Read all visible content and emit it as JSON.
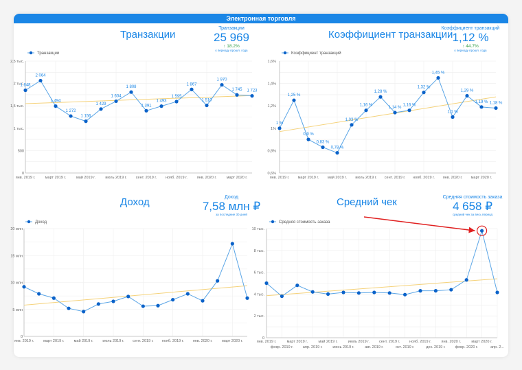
{
  "header": {
    "title": "Электронная торговля"
  },
  "panels": [
    {
      "title": "Транзакции",
      "kpi": {
        "label": "Транзакции",
        "value": "25 969",
        "change": "↑ 18.2%",
        "note": "к периоду прошл. года"
      }
    },
    {
      "title": "Коэффициент транзакции",
      "kpi": {
        "label": "Коэффициент транзакций",
        "value": "1,12 %",
        "change": "↑ 44.7%",
        "note": "к периоду прошл. года"
      }
    },
    {
      "title": "Доход",
      "kpi": {
        "label": "Доход",
        "value": "7,58 млн ₽",
        "note": "за последние 30 дней"
      }
    },
    {
      "title": "Средний чек",
      "kpi": {
        "label": "Средняя стоимость заказа",
        "value": "4 658 ₽",
        "note": "средний чек за весь период"
      }
    }
  ],
  "colors": {
    "accent": "#1a86e6",
    "line": "#5aa5e6",
    "point": "#0a62c9",
    "trend": "#f5d27a",
    "positive": "#2e9e44",
    "annotation": "#e02020"
  },
  "chart_data": [
    {
      "type": "line",
      "title": "Транзакции",
      "legend": "Транзакции",
      "legend_position": "top-left",
      "categories": [
        "янв. 2019 г.",
        "февр. 2019 г.",
        "март 2019 г.",
        "апр. 2019 г.",
        "май 2019 г.",
        "июнь 2019 г.",
        "июль 2019 г.",
        "авг. 2019 г.",
        "сент. 2019 г.",
        "окт. 2019 г.",
        "нояб. 2019 г.",
        "дек. 2019 г.",
        "янв. 2020 г.",
        "февр. 2020 г.",
        "март 2020 г.",
        "апр. 2020 г."
      ],
      "x_tick_labels": [
        "янв. 2019 г.",
        "март 2019 г.",
        "май 2019 г.",
        "июль 2019 г.",
        "сент. 2019 г.",
        "нояб. 2019 г.",
        "янв. 2020 г.",
        "март 2020 г."
      ],
      "values": [
        1848,
        2064,
        1494,
        1272,
        1156,
        1429,
        1604,
        1808,
        1391,
        1493,
        1595,
        1867,
        1510,
        1970,
        1745,
        1723
      ],
      "data_labels": [
        "1 848",
        "2 064",
        "1 494",
        "1 272",
        "1 156",
        "1 429",
        "1 604",
        "1 808",
        "1 391",
        "1 493",
        "1 595",
        "1 867",
        "1 510",
        "1 970",
        "1 745",
        "1 723"
      ],
      "trend": [
        1550,
        1730
      ],
      "ylim": [
        0,
        2500
      ],
      "y_ticks": [
        0,
        500,
        1000,
        1500,
        2000,
        2500
      ],
      "y_tick_labels": [
        "0",
        "500",
        "1 тыс.",
        "1,5 тыс.",
        "2 тыс.",
        "2,5 тыс."
      ],
      "grid": true
    },
    {
      "type": "line",
      "title": "Коэффициент транзакции",
      "legend": "Коэффициент транзакций",
      "legend_position": "top-left",
      "categories": [
        "янв. 2019 г.",
        "февр. 2019 г.",
        "март 2019 г.",
        "апр. 2019 г.",
        "май 2019 г.",
        "июнь 2019 г.",
        "июль 2019 г.",
        "авг. 2019 г.",
        "сент. 2019 г.",
        "окт. 2019 г.",
        "нояб. 2019 г.",
        "дек. 2019 г.",
        "янв. 2020 г.",
        "февр. 2020 г.",
        "март 2020 г.",
        "апр. 2020 г."
      ],
      "x_tick_labels": [
        "янв. 2019 г.",
        "март 2019 г.",
        "май 2019 г.",
        "июль 2019 г.",
        "сент. 2019 г.",
        "нояб. 2019 г.",
        "янв. 2020 г.",
        "март 2020 г."
      ],
      "values": [
        1.0,
        1.25,
        0.9,
        0.83,
        0.78,
        1.03,
        1.16,
        1.28,
        1.14,
        1.16,
        1.32,
        1.45,
        1.1,
        1.29,
        1.19,
        1.18
      ],
      "data_labels": [
        "1 %",
        "1,25 %",
        "0,9 %",
        "0,83 %",
        "0,78 %",
        "1,03 %",
        "1,16 %",
        "1,28 %",
        "1,14 %",
        "1,16 %",
        "1,32 %",
        "1,45 %",
        "1,1 %",
        "1,29 %",
        "1,19 %",
        "1,18 %"
      ],
      "trend": [
        0.97,
        1.28
      ],
      "ylim": [
        0.6,
        1.6
      ],
      "y_ticks": [
        0.6,
        0.8,
        1.0,
        1.2,
        1.4,
        1.6
      ],
      "y_tick_labels": [
        "0,6%",
        "0,8%",
        "1%",
        "1,2%",
        "1,4%",
        "1,6%"
      ],
      "grid": true
    },
    {
      "type": "line",
      "title": "Доход",
      "legend": "Доход",
      "legend_position": "top-left",
      "categories": [
        "янв. 2019 г.",
        "февр. 2019 г.",
        "март 2019 г.",
        "апр. 2019 г.",
        "май 2019 г.",
        "июнь 2019 г.",
        "июль 2019 г.",
        "авг. 2019 г.",
        "сент. 2019 г.",
        "окт. 2019 г.",
        "нояб. 2019 г.",
        "дек. 2019 г.",
        "янв. 2020 г.",
        "февр. 2020 г.",
        "март 2020 г.",
        "апр. 2020 г."
      ],
      "x_tick_labels": [
        "янв. 2019 г.",
        "март 2019 г.",
        "май 2019 г.",
        "июль 2019 г.",
        "сент. 2019 г.",
        "нояб. 2019 г.",
        "янв. 2020 г.",
        "март 2020 г."
      ],
      "values": [
        9.2,
        7.9,
        7.1,
        5.2,
        4.6,
        6.0,
        6.5,
        7.4,
        5.6,
        5.7,
        6.8,
        7.9,
        6.6,
        10.3,
        17.2,
        7.1
      ],
      "unit": "млн ₽",
      "trend": [
        5.8,
        9.4
      ],
      "ylim": [
        0,
        20
      ],
      "y_ticks": [
        0,
        5,
        10,
        15,
        20
      ],
      "y_tick_labels": [
        "0",
        "5 млн",
        "10 млн",
        "15 млн",
        "20 млн"
      ],
      "grid": true
    },
    {
      "type": "line",
      "title": "Средний чек",
      "legend": "Средняя стоимость заказа",
      "legend_position": "top-left",
      "categories": [
        "янв. 2019 г.",
        "февр. 2019 г.",
        "март 2019 г.",
        "апр. 2019 г.",
        "май 2019 г.",
        "июнь 2019 г.",
        "июль 2019 г.",
        "авг. 2019 г.",
        "сент. 2019 г.",
        "окт. 2019 г.",
        "нояб. 2019 г.",
        "дек. 2019 г.",
        "янв. 2020 г.",
        "февр. 2020 г.",
        "март 2020 г.",
        "апр. 2..."
      ],
      "x_tick_labels": [
        "янв. 2019 г.",
        "февр. 2019 г.",
        "март 2019 г.",
        "апр. 2019 г.",
        "май 2019 г.",
        "июнь 2019 г.",
        "июль 2019 г.",
        "авг. 2019 г.",
        "сент. 2019 г.",
        "окт. 2019 г.",
        "нояб. 2019 г.",
        "дек. 2019 г.",
        "янв. 2020 г.",
        "февр. 2020 г.",
        "март 2020 г.",
        "апр. 2..."
      ],
      "values": [
        5000,
        3800,
        4800,
        4200,
        4000,
        4150,
        4100,
        4150,
        4100,
        3950,
        4300,
        4300,
        4400,
        5300,
        9800,
        4150
      ],
      "unit": "₽",
      "trend": [
        3850,
        5400
      ],
      "ylim": [
        0,
        10000
      ],
      "y_ticks": [
        0,
        2000,
        4000,
        6000,
        8000,
        10000
      ],
      "y_tick_labels": [
        "0",
        "2 тыс.",
        "4 тыс.",
        "6 тыс.",
        "8 тыс.",
        "10 тыс."
      ],
      "highlight_index": 14,
      "grid": true
    }
  ]
}
